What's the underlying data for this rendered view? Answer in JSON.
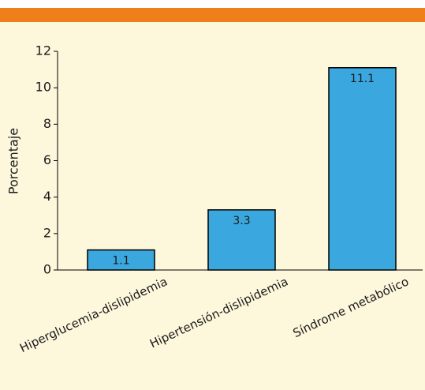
{
  "chart_data": {
    "type": "bar",
    "y_label": "Porcentaje",
    "categories": [
      "Hiperglucemia-dislipidemia",
      "Hipertensión-dislipidemia",
      "Síndrome metabólico"
    ],
    "values": [
      1.1,
      3.3,
      11.1
    ],
    "color": "#3aa7de",
    "ylim": [
      0,
      12
    ],
    "yticks": [
      0,
      2,
      4,
      6,
      8,
      10,
      12
    ],
    "grid": false
  }
}
